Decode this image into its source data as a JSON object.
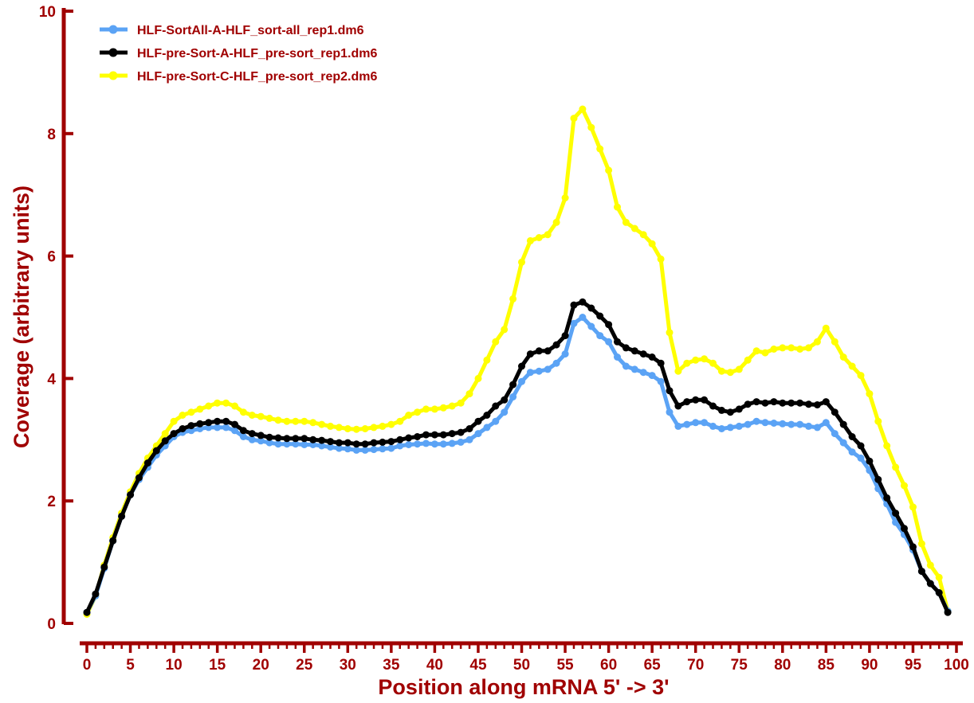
{
  "chart_data": {
    "type": "line",
    "xlabel": "Position along mRNA 5' -> 3'",
    "ylabel": "Coverage (arbitrary units)",
    "xlim": [
      0,
      100
    ],
    "ylim": [
      0,
      10
    ],
    "x_ticks": [
      0,
      5,
      10,
      15,
      20,
      25,
      30,
      35,
      40,
      45,
      50,
      55,
      60,
      65,
      70,
      75,
      80,
      85,
      90,
      95,
      100
    ],
    "y_ticks": [
      0,
      2,
      4,
      6,
      8,
      10
    ],
    "grid": false,
    "legend_position": "top-left",
    "x": [
      0,
      1,
      2,
      3,
      4,
      5,
      6,
      7,
      8,
      9,
      10,
      11,
      12,
      13,
      14,
      15,
      16,
      17,
      18,
      19,
      20,
      21,
      22,
      23,
      24,
      25,
      26,
      27,
      28,
      29,
      30,
      31,
      32,
      33,
      34,
      35,
      36,
      37,
      38,
      39,
      40,
      41,
      42,
      43,
      44,
      45,
      46,
      47,
      48,
      49,
      50,
      51,
      52,
      53,
      54,
      55,
      56,
      57,
      58,
      59,
      60,
      61,
      62,
      63,
      64,
      65,
      66,
      67,
      68,
      69,
      70,
      71,
      72,
      73,
      74,
      75,
      76,
      77,
      78,
      79,
      80,
      81,
      82,
      83,
      84,
      85,
      86,
      87,
      88,
      89,
      90,
      91,
      92,
      93,
      94,
      95,
      96,
      97,
      98,
      99
    ],
    "series": [
      {
        "name": "HLF-pre-Sort-C-HLF_pre-sort_rep2.dm6",
        "color": "#ffff00",
        "values": [
          0.15,
          0.45,
          0.95,
          1.4,
          1.8,
          2.15,
          2.45,
          2.7,
          2.9,
          3.1,
          3.3,
          3.4,
          3.45,
          3.5,
          3.55,
          3.6,
          3.6,
          3.55,
          3.45,
          3.4,
          3.38,
          3.35,
          3.32,
          3.3,
          3.3,
          3.3,
          3.28,
          3.25,
          3.22,
          3.2,
          3.18,
          3.17,
          3.18,
          3.2,
          3.22,
          3.25,
          3.3,
          3.4,
          3.45,
          3.5,
          3.5,
          3.52,
          3.55,
          3.6,
          3.75,
          4.0,
          4.3,
          4.6,
          4.8,
          5.3,
          5.9,
          6.25,
          6.3,
          6.35,
          6.55,
          6.95,
          8.25,
          8.4,
          8.1,
          7.75,
          7.4,
          6.8,
          6.55,
          6.45,
          6.35,
          6.2,
          5.95,
          4.75,
          4.12,
          4.25,
          4.3,
          4.32,
          4.25,
          4.12,
          4.1,
          4.15,
          4.3,
          4.45,
          4.42,
          4.48,
          4.5,
          4.5,
          4.48,
          4.5,
          4.6,
          4.82,
          4.6,
          4.35,
          4.2,
          4.05,
          3.75,
          3.3,
          2.9,
          2.55,
          2.25,
          1.9,
          1.3,
          0.95,
          0.75,
          0.2
        ]
      },
      {
        "name": "HLF-SortAll-A-HLF_sort-all_rep1.dm6",
        "color": "#5ba3f5",
        "values": [
          0.18,
          0.45,
          0.9,
          1.35,
          1.75,
          2.1,
          2.35,
          2.55,
          2.75,
          2.9,
          3.05,
          3.12,
          3.15,
          3.18,
          3.2,
          3.2,
          3.2,
          3.15,
          3.05,
          3.0,
          2.98,
          2.95,
          2.93,
          2.93,
          2.93,
          2.92,
          2.92,
          2.9,
          2.88,
          2.86,
          2.85,
          2.83,
          2.83,
          2.84,
          2.85,
          2.86,
          2.9,
          2.92,
          2.93,
          2.94,
          2.93,
          2.93,
          2.94,
          2.96,
          3.0,
          3.1,
          3.2,
          3.3,
          3.45,
          3.7,
          3.95,
          4.1,
          4.12,
          4.15,
          4.25,
          4.4,
          4.9,
          5.0,
          4.85,
          4.7,
          4.6,
          4.35,
          4.2,
          4.15,
          4.1,
          4.05,
          3.95,
          3.45,
          3.22,
          3.25,
          3.28,
          3.28,
          3.22,
          3.18,
          3.2,
          3.22,
          3.25,
          3.3,
          3.28,
          3.27,
          3.26,
          3.25,
          3.25,
          3.22,
          3.2,
          3.28,
          3.1,
          2.95,
          2.8,
          2.7,
          2.5,
          2.2,
          1.95,
          1.65,
          1.45,
          1.2,
          0.85,
          0.65,
          0.5,
          0.2
        ]
      },
      {
        "name": "HLF-pre-Sort-A-HLF_pre-sort_rep1.dm6",
        "color": "#000000",
        "values": [
          0.18,
          0.48,
          0.92,
          1.35,
          1.75,
          2.1,
          2.38,
          2.62,
          2.82,
          2.98,
          3.1,
          3.18,
          3.23,
          3.26,
          3.28,
          3.3,
          3.3,
          3.25,
          3.15,
          3.1,
          3.07,
          3.04,
          3.03,
          3.02,
          3.02,
          3.02,
          3.0,
          2.99,
          2.97,
          2.95,
          2.95,
          2.93,
          2.93,
          2.95,
          2.96,
          2.97,
          3.0,
          3.03,
          3.05,
          3.08,
          3.08,
          3.08,
          3.1,
          3.12,
          3.18,
          3.3,
          3.4,
          3.55,
          3.65,
          3.9,
          4.2,
          4.4,
          4.45,
          4.45,
          4.55,
          4.7,
          5.2,
          5.25,
          5.15,
          5.02,
          4.88,
          4.6,
          4.5,
          4.45,
          4.4,
          4.35,
          4.25,
          3.8,
          3.55,
          3.62,
          3.65,
          3.65,
          3.55,
          3.48,
          3.45,
          3.5,
          3.58,
          3.62,
          3.6,
          3.62,
          3.6,
          3.6,
          3.6,
          3.58,
          3.57,
          3.62,
          3.45,
          3.25,
          3.05,
          2.9,
          2.65,
          2.35,
          2.05,
          1.8,
          1.55,
          1.25,
          0.85,
          0.65,
          0.5,
          0.18
        ]
      }
    ],
    "legend": [
      {
        "label": "HLF-SortAll-A-HLF_sort-all_rep1.dm6",
        "color": "#5ba3f5"
      },
      {
        "label": "HLF-pre-Sort-A-HLF_pre-sort_rep1.dm6",
        "color": "#000000"
      },
      {
        "label": "HLF-pre-Sort-C-HLF_pre-sort_rep2.dm6",
        "color": "#ffff00"
      }
    ]
  }
}
